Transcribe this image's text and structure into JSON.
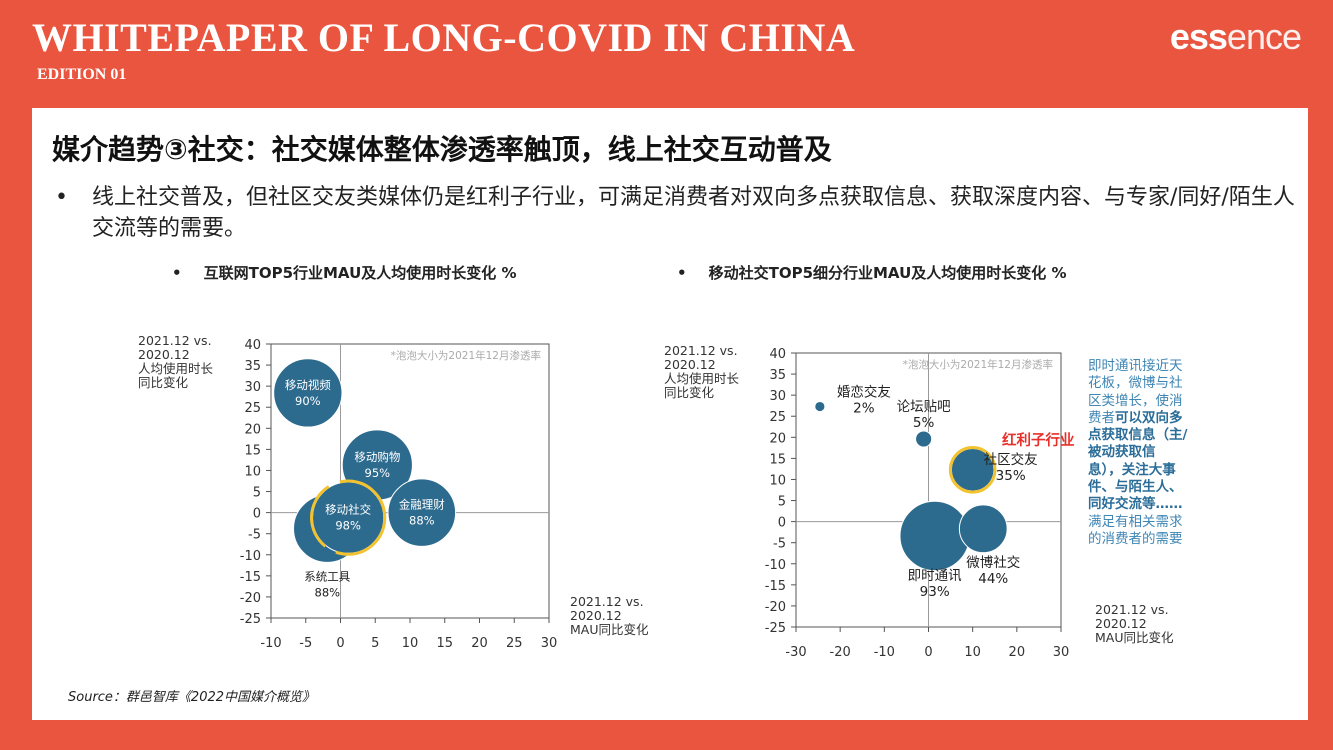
{
  "header": {
    "title": "WHITEPAPER OF LONG-COVID IN CHINA",
    "edition": "EDITION 01",
    "logo_bold": "ess",
    "logo_light": "ence"
  },
  "slide": {
    "title": "媒介趋势③社交：社交媒体整体渗透率触顶，线上社交互动普及",
    "bullet_marker": "•",
    "bullet": "线上社交普及，但社区交友类媒体仍是红利子行业，可满足消费者对双向多点获取信息、获取深度内容、与专家/同好/陌生人交流等的需要。",
    "source": "Source：群邑智库《2022中国媒介概览》",
    "note": {
      "p1": "即时通讯接近天花板，微博与社区类增长，使消费者",
      "p2": "可以双向多点获取信息（主/被动获取信息），关注大事件、与陌生人、同好交流等……",
      "p3": "满足有相关需求的消费者的需要"
    }
  },
  "chart_data": [
    {
      "type": "bubble",
      "title": "互联网TOP5行业MAU及人均使用时长变化 %",
      "xlabel": "2021.12 vs. 2020.12 MAU同比变化",
      "xlabel_lines": [
        "2021.12 vs.",
        "2020.12",
        "MAU同比变化"
      ],
      "ylabel_lines": [
        "2021.12 vs.",
        "2020.12",
        "人均使用时长",
        "同比变化"
      ],
      "note": "*泡泡大小为2021年12月渗透率",
      "xlim": [
        -10,
        30
      ],
      "ylim": [
        -25,
        40
      ],
      "xticks": [
        -10,
        -5,
        0,
        5,
        10,
        15,
        20,
        25,
        30
      ],
      "yticks": [
        40,
        35,
        30,
        25,
        20,
        15,
        10,
        5,
        0,
        -5,
        -10,
        -15,
        -20,
        -25
      ],
      "bubble_color": "#2c6a8e",
      "highlight_color": "#f2c230",
      "points": [
        {
          "name": "移动视频",
          "x": -4.7,
          "y": 28.4,
          "size_pct": 90,
          "label": "90%"
        },
        {
          "name": "移动购物",
          "x": 5.3,
          "y": 11.3,
          "size_pct": 95,
          "label": "95%"
        },
        {
          "name": "金融理财",
          "x": 11.7,
          "y": 0,
          "size_pct": 88,
          "label": "88%"
        },
        {
          "name": "系统工具",
          "x": -1.9,
          "y": -3.8,
          "size_pct": 88,
          "label": "88%"
        },
        {
          "name": "移动社交",
          "x": 1.1,
          "y": -1.2,
          "size_pct": 98,
          "label": "98%",
          "highlight": true
        }
      ]
    },
    {
      "type": "bubble",
      "title": "移动社交TOP5细分行业MAU及人均使用时长变化 %",
      "xlabel_lines": [
        "2021.12 vs.",
        "2020.12",
        "MAU同比变化"
      ],
      "ylabel_lines": [
        "2021.12 vs.",
        "2020.12",
        "人均使用时长",
        "同比变化"
      ],
      "note": "*泡泡大小为2021年12月渗透率",
      "annotation": "红利子行业",
      "annotation_color": "#e8302a",
      "xlim": [
        -30,
        30
      ],
      "ylim": [
        -25,
        40
      ],
      "xticks": [
        -30,
        -20,
        -10,
        0,
        10,
        20,
        30
      ],
      "yticks": [
        40,
        35,
        30,
        25,
        20,
        15,
        10,
        5,
        0,
        -5,
        -10,
        -15,
        -20,
        -25
      ],
      "bubble_color": "#2c6a8e",
      "highlight_color": "#f2c230",
      "points": [
        {
          "name": "婚恋交友",
          "x": -24.6,
          "y": 27.3,
          "size_pct": 2,
          "label": "2%"
        },
        {
          "name": "论坛贴吧",
          "x": -1.1,
          "y": 19.6,
          "size_pct": 5,
          "label": "5%"
        },
        {
          "name": "社区交友",
          "x": 10,
          "y": 12.3,
          "size_pct": 35,
          "label": "35%",
          "highlight": true
        },
        {
          "name": "即时通讯",
          "x": 1.4,
          "y": -3.4,
          "size_pct": 93,
          "label": "93%"
        },
        {
          "name": "微博社交",
          "x": 12.4,
          "y": -1.7,
          "size_pct": 44,
          "label": "44%"
        }
      ]
    }
  ]
}
